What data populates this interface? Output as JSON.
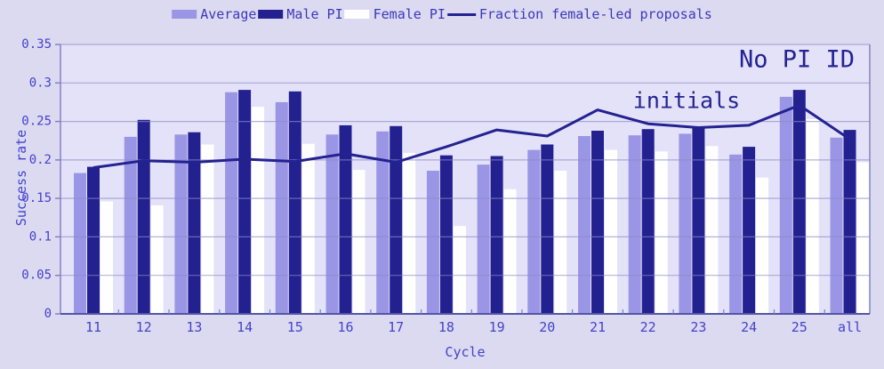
{
  "annotations": {
    "no_pi_id": "No PI ID",
    "initials": "initials"
  },
  "colors": {
    "figure_bg": "#dcdaf0",
    "plot_bg": "#e4e2f8",
    "average_bar": "#9a96e5",
    "male_bar": "#232190",
    "female_bar": "#ffffff",
    "fraction_line": "#232290",
    "grid": "#8a8ac8",
    "spine": "#7d7dc0",
    "baseline": "#5454a8",
    "tick_text": "#4442cb",
    "legend_text": "#3b38bb",
    "annotation_text": "#232394"
  },
  "chart_data": {
    "type": "bar",
    "title": "",
    "xlabel": "Cycle",
    "ylabel": "Success rate",
    "categories": [
      "11",
      "12",
      "13",
      "14",
      "15",
      "16",
      "17",
      "18",
      "19",
      "20",
      "21",
      "22",
      "23",
      "24",
      "25",
      "all"
    ],
    "series": [
      {
        "name": "Average",
        "type": "bar",
        "color": "#9a96e5",
        "values": [
          0.183,
          0.23,
          0.233,
          0.288,
          0.275,
          0.233,
          0.237,
          0.186,
          0.194,
          0.213,
          0.231,
          0.232,
          0.234,
          0.207,
          0.282,
          0.229
        ]
      },
      {
        "name": "Male PI",
        "type": "bar",
        "color": "#232190",
        "values": [
          0.191,
          0.252,
          0.236,
          0.291,
          0.289,
          0.245,
          0.244,
          0.206,
          0.205,
          0.22,
          0.238,
          0.24,
          0.241,
          0.217,
          0.291,
          0.239
        ]
      },
      {
        "name": "Female PI",
        "type": "bar",
        "color": "#ffffff",
        "values": [
          0.146,
          0.141,
          0.22,
          0.269,
          0.221,
          0.187,
          0.209,
          0.114,
          0.162,
          0.186,
          0.213,
          0.211,
          0.218,
          0.177,
          0.253,
          0.197
        ]
      },
      {
        "name": "Fraction female-led proposals",
        "type": "line",
        "color": "#232290",
        "values": [
          0.19,
          0.199,
          0.197,
          0.201,
          0.198,
          0.208,
          0.197,
          0.217,
          0.239,
          0.231,
          0.265,
          0.247,
          0.242,
          0.245,
          0.271,
          0.227
        ]
      }
    ],
    "ylim": [
      0,
      0.35
    ],
    "yticks": [
      0,
      0.05,
      0.1,
      0.15,
      0.2,
      0.25,
      0.3,
      0.35
    ],
    "grid": true,
    "legend_position": "top"
  }
}
